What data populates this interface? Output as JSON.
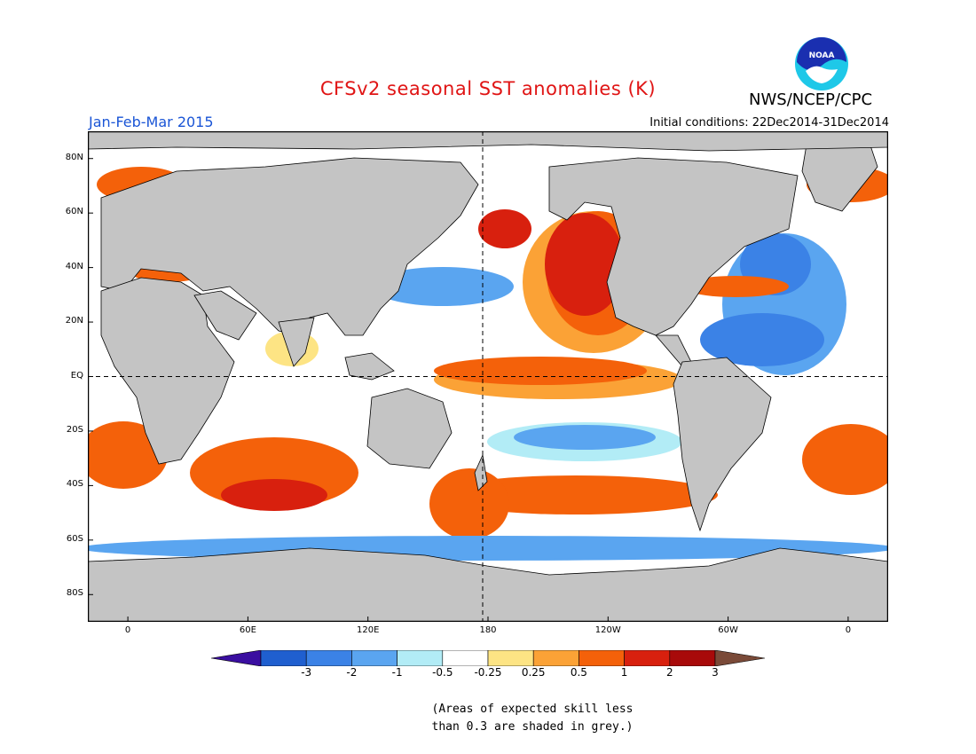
{
  "header": {
    "title": "CFSv2 seasonal SST anomalies (K)",
    "period": "Jan-Feb-Mar 2015",
    "initial_conditions": "Initial conditions: 22Dec2014-31Dec2014",
    "org": "NWS/NCEP/CPC",
    "logo_text": "NOAA"
  },
  "axes": {
    "lat_labels": [
      {
        "lat": 80,
        "text": "80N"
      },
      {
        "lat": 60,
        "text": "60N"
      },
      {
        "lat": 40,
        "text": "40N"
      },
      {
        "lat": 20,
        "text": "20N"
      },
      {
        "lat": 0,
        "text": "EQ"
      },
      {
        "lat": -20,
        "text": "20S"
      },
      {
        "lat": -40,
        "text": "40S"
      },
      {
        "lat": -60,
        "text": "60S"
      },
      {
        "lat": -80,
        "text": "80S"
      }
    ],
    "lon_labels": [
      {
        "lon": 0,
        "text": "0"
      },
      {
        "lon": 60,
        "text": "60E"
      },
      {
        "lon": 120,
        "text": "120E"
      },
      {
        "lon": 180,
        "text": "180"
      },
      {
        "lon": 240,
        "text": "120W"
      },
      {
        "lon": 300,
        "text": "60W"
      },
      {
        "lon": 360,
        "text": "0"
      }
    ],
    "lon_range": [
      -20,
      380
    ],
    "lat_range": [
      -90,
      90
    ]
  },
  "colorbar": {
    "colors": [
      "#3a0ea0",
      "#1f5fcf",
      "#3b82e6",
      "#5aa5f0",
      "#b2ecf6",
      "#ffffff",
      "#fde484",
      "#fba236",
      "#f4610a",
      "#d8200e",
      "#a80a0a",
      "#7a4a38"
    ],
    "labels": [
      "-3",
      "-2",
      "-1",
      "-0.5",
      "-0.25",
      "0.25",
      "0.5",
      "1",
      "2",
      "3"
    ]
  },
  "note": {
    "line1": "(Areas of expected skill less",
    "line2": "than 0.3 are shaded in grey.)"
  },
  "colors": {
    "land": "#c4c4c4",
    "ocean": "#ffffff",
    "skill_grey": "#c4c4c4",
    "title": "#e01515",
    "period": "#1a55d6"
  }
}
